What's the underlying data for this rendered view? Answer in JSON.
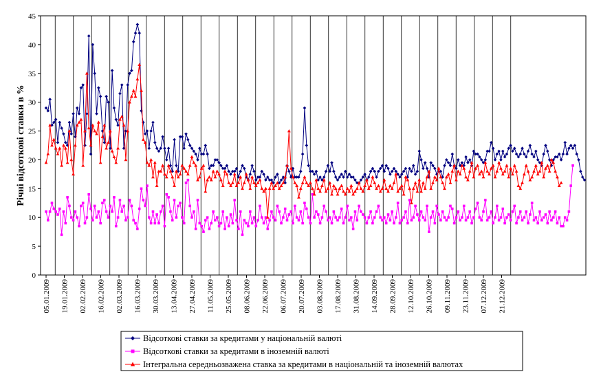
{
  "chart_data": {
    "type": "line",
    "title": "",
    "xlabel": "",
    "ylabel": "Річні відсоткові ставки в %",
    "ylim": [
      0,
      45
    ],
    "yticks": [
      0,
      5,
      10,
      15,
      20,
      25,
      30,
      35,
      40,
      45
    ],
    "grid": "vertical",
    "legend_position": "bottom",
    "x_tick_labels": [
      "05.01.2009",
      "19.01.2009",
      "02.02.2009",
      "16.02.2009",
      "02.03.2009",
      "16.03.2009",
      "30.03.2009",
      "13.04.2009",
      "27.04.2009",
      "11.05.2009",
      "25.05.2009",
      "08.06.2009",
      "22.06.2009",
      "06.07.2009",
      "20.07.2009",
      "03.08.2009",
      "17.08.2009",
      "31.08.2009",
      "14.09.2009",
      "28.09.2009",
      "12.10.2009",
      "26.10.2009",
      "09.11.2009",
      "23.11.2009",
      "07.12.2009",
      "21.12.2009"
    ],
    "series": [
      {
        "name": "Відсоткові ставки за кредитами у національній валюті",
        "color": "#000080",
        "marker": "diamond",
        "values": [
          29,
          28.5,
          30.5,
          26,
          26.5,
          27,
          23,
          26.5,
          25.5,
          24.5,
          23,
          22.5,
          26.5,
          24.5,
          28,
          24,
          29,
          28,
          32.5,
          33,
          22.5,
          28,
          41.5,
          21,
          40,
          35,
          28,
          32.5,
          31,
          25,
          23,
          31,
          30,
          22,
          35.5,
          29,
          27,
          26,
          31.5,
          33,
          22,
          25,
          33,
          35,
          35.5,
          40.5,
          42,
          43.5,
          42,
          28.5,
          26.5,
          24.5,
          25,
          22,
          25,
          26.5,
          23,
          22,
          21.5,
          22,
          24,
          22,
          20,
          22,
          19,
          18,
          23.5,
          19,
          18,
          24,
          24,
          22,
          24.5,
          23.5,
          22.5,
          22,
          21.5,
          21,
          20,
          22,
          21,
          21,
          22.5,
          21,
          18.5,
          19,
          19,
          20,
          20,
          19.5,
          19,
          18.5,
          18.5,
          19,
          18,
          17.5,
          18,
          18,
          18.5,
          17,
          18,
          19,
          18.5,
          17,
          16.5,
          17.5,
          19,
          18,
          16.5,
          17,
          17,
          18,
          17.5,
          16.5,
          17,
          16.5,
          16.5,
          16,
          17,
          17.5,
          16,
          16.5,
          17,
          16,
          19,
          18,
          17,
          18.5,
          17,
          17,
          17,
          18,
          21,
          29,
          22.5,
          19,
          18,
          18,
          17.5,
          18,
          16.5,
          17,
          16.5,
          17,
          18,
          19,
          18,
          19.5,
          18,
          17,
          16.5,
          17,
          17.5,
          17,
          18,
          17,
          17.5,
          17,
          17,
          16.5,
          16,
          16,
          16.5,
          17,
          17.5,
          16.5,
          17,
          18,
          18.5,
          18,
          17,
          18,
          18.5,
          19,
          18,
          19,
          18.5,
          17.5,
          18,
          18.5,
          18,
          17.5,
          17,
          17.5,
          18,
          18.5,
          17,
          18.5,
          18,
          19,
          17.5,
          18,
          21.5,
          20,
          18.5,
          19.5,
          18.5,
          17,
          19.5,
          19,
          18.5,
          17.5,
          18,
          18,
          17,
          19,
          20,
          19.5,
          19,
          21,
          19,
          18.5,
          20,
          19,
          19.5,
          19,
          20.5,
          19.5,
          20,
          19,
          21.5,
          21,
          21,
          20.5,
          20,
          19.5,
          20,
          21.5,
          21.5,
          23,
          22,
          20,
          21,
          21.5,
          20,
          21.5,
          20.5,
          21,
          22,
          22.5,
          21.5,
          22,
          21,
          20.5,
          21,
          22,
          21,
          20.5,
          21.5,
          22.5,
          21,
          20.5,
          21.5,
          20,
          19.5,
          19,
          21,
          22.5,
          21.5,
          20,
          19,
          20,
          20.5,
          20.5,
          21,
          20,
          21,
          23,
          21,
          22,
          22.5,
          22,
          22.5,
          21,
          20,
          18,
          17,
          16.5
        ],
        "note": "values estimated from the plotted curve"
      },
      {
        "name": "Відсоткові ставки за кредитами в іноземній валюті",
        "color": "#ff00ff",
        "marker": "square",
        "values": [
          11,
          9.5,
          11,
          12.5,
          11.5,
          11,
          10.5,
          11.5,
          7,
          11,
          9,
          13.5,
          12,
          10,
          9.5,
          11,
          10,
          8.5,
          12,
          12.5,
          9,
          10,
          14,
          11.5,
          9.5,
          12,
          10,
          11,
          9,
          12.5,
          13,
          11,
          10,
          12,
          11,
          13.5,
          8.5,
          10,
          13,
          11,
          12,
          9.5,
          10,
          13,
          12,
          9.5,
          9,
          8,
          11.5,
          15,
          13,
          12,
          15.5,
          10,
          9,
          11,
          9,
          10.5,
          9,
          11,
          12,
          8.5,
          14,
          13.5,
          11,
          9.5,
          13,
          10,
          12,
          12.5,
          10,
          9,
          16,
          16.5,
          12,
          10,
          11,
          8,
          13,
          9,
          8.5,
          7.5,
          9.5,
          10,
          8,
          9,
          11,
          9.5,
          10,
          8.5,
          9,
          11,
          8,
          10,
          8.5,
          10.5,
          9,
          13,
          9.5,
          8,
          11,
          7,
          9.5,
          9,
          8.5,
          11,
          9,
          10,
          8.5,
          9.5,
          12,
          10,
          9,
          10,
          8,
          9.5,
          11,
          10,
          9.5,
          12,
          11,
          9,
          10,
          11.5,
          9.5,
          10.5,
          11,
          9,
          12,
          10,
          9.5,
          11,
          9,
          12.5,
          11.5,
          10,
          9,
          14,
          10,
          11,
          10.5,
          9,
          10,
          12,
          11,
          9.5,
          10,
          9,
          11,
          10,
          9.5,
          10,
          11.5,
          9,
          10,
          12,
          9.5,
          10,
          8,
          11,
          9.5,
          12,
          11,
          10.5,
          10,
          9,
          10,
          11,
          9,
          10,
          11,
          12,
          10,
          9.5,
          10,
          9,
          10.5,
          9.5,
          11,
          9,
          10,
          12.5,
          9,
          9.5,
          10,
          11,
          9,
          13,
          9.5,
          10,
          12,
          10.5,
          9.5,
          11,
          10,
          9.5,
          12,
          7.5,
          10,
          11,
          9,
          12,
          10.5,
          9.5,
          11,
          10,
          9.5,
          10,
          12,
          11.5,
          9,
          10,
          11,
          9.5,
          10,
          12,
          9.5,
          10,
          11,
          9,
          10,
          11.5,
          12.5,
          10,
          9.5,
          11,
          13,
          9.5,
          10,
          11,
          9,
          10,
          12,
          9.5,
          10,
          11.5,
          9,
          10,
          10.5,
          9.5,
          11,
          12,
          9,
          10,
          11,
          9.5,
          10,
          11,
          9,
          10.5,
          12.5,
          9.5,
          10,
          9,
          11,
          9.5,
          10,
          10.5,
          9,
          11,
          9.5,
          10,
          11,
          9,
          10,
          8.5,
          8.5,
          10,
          9.5,
          11,
          15.5,
          19
        ],
        "note": "values estimated from the plotted curve"
      },
      {
        "name": "Інтегральна середньозважена ставка за кредитами в національній та іноземній валютах",
        "color": "#ff0000",
        "marker": "triangle",
        "values": [
          19.5,
          21,
          26,
          22.5,
          23.5,
          22,
          21,
          22,
          19,
          22.5,
          22,
          19.5,
          25,
          20,
          17.5,
          22.5,
          26,
          26.5,
          27,
          19,
          25,
          35,
          25.5,
          22.5,
          26,
          25,
          24.5,
          26.5,
          19.5,
          24,
          26,
          22,
          23,
          25,
          21.5,
          20.5,
          19.5,
          22,
          27,
          27.5,
          26,
          20,
          25,
          30,
          31,
          32,
          31,
          34,
          36.5,
          32,
          23.5,
          23,
          19.5,
          19,
          20,
          17,
          19.5,
          15.5,
          18,
          18,
          19,
          17.5,
          17,
          19,
          18,
          17,
          15.5,
          18,
          17,
          17.5,
          19,
          18.5,
          18,
          17.5,
          19,
          20.5,
          19.5,
          19,
          16.5,
          17,
          18.5,
          19,
          14.5,
          16.5,
          17,
          16.5,
          18,
          17,
          18,
          17.5,
          16.5,
          15.5,
          18,
          17.5,
          16,
          15.5,
          16,
          17.5,
          15.5,
          16,
          17,
          15,
          16,
          17.5,
          16.5,
          15,
          17,
          16,
          15.5,
          16,
          16.5,
          15,
          14.5,
          15,
          10,
          15,
          16,
          15,
          15.5,
          16,
          15,
          15.5,
          16,
          17,
          19,
          25,
          18.5,
          17,
          16,
          15.5,
          13.5,
          15,
          16,
          17,
          16,
          15.5,
          16,
          15,
          14,
          16.5,
          15,
          14.5,
          15.5,
          16.5,
          14.5,
          15,
          16,
          14,
          15.5,
          15,
          14,
          15,
          15.5,
          14.5,
          14,
          15,
          14.5,
          15.5,
          14,
          14.5,
          15,
          16,
          15,
          14.5,
          15.5,
          16.5,
          15,
          15.5,
          17,
          16,
          15,
          15.5,
          14.5,
          15,
          16.5,
          15,
          14.5,
          15.5,
          15,
          16,
          17.5,
          14.5,
          15,
          15.5,
          14,
          17,
          16.5,
          15,
          12.5,
          15,
          16,
          14.5,
          16.5,
          14.5,
          16,
          15,
          17,
          18,
          15,
          16,
          17,
          16.5,
          18.5,
          17,
          16,
          15,
          17,
          17.5,
          16,
          18,
          19,
          16.5,
          18,
          17.5,
          19,
          18.5,
          17,
          16.5,
          18,
          19.5,
          17,
          18.5,
          19,
          17.5,
          18,
          17,
          19.5,
          18,
          17.5,
          18.5,
          19,
          17,
          18,
          19.5,
          18.5,
          17.5,
          18,
          19,
          17,
          18.5,
          17.5,
          19,
          18,
          15.5,
          15,
          16,
          17.5,
          19,
          18,
          16.5,
          17,
          18,
          19,
          17.5,
          18,
          19.5,
          17,
          18.5,
          19,
          18,
          20,
          19.5,
          18,
          17,
          15.5,
          16
        ],
        "note": "values estimated from the plotted curve"
      }
    ]
  }
}
